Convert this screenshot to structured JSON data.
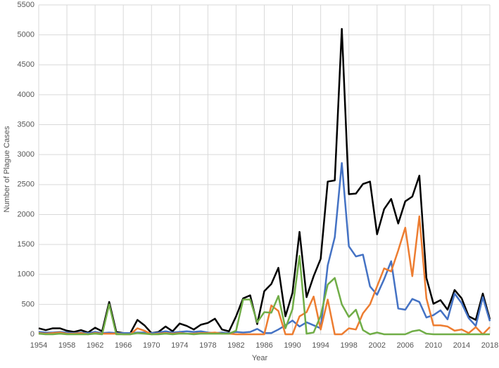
{
  "chart_data": {
    "type": "line",
    "x_label": "Year",
    "y_label": "Number of Plague Cases",
    "x": [
      1954,
      1955,
      1956,
      1957,
      1958,
      1959,
      1960,
      1961,
      1962,
      1963,
      1964,
      1965,
      1966,
      1967,
      1968,
      1969,
      1970,
      1971,
      1972,
      1973,
      1974,
      1975,
      1976,
      1977,
      1978,
      1979,
      1980,
      1981,
      1982,
      1983,
      1984,
      1985,
      1986,
      1987,
      1988,
      1989,
      1990,
      1991,
      1992,
      1993,
      1994,
      1995,
      1996,
      1997,
      1998,
      1999,
      2000,
      2001,
      2002,
      2003,
      2004,
      2005,
      2006,
      2007,
      2008,
      2009,
      2010,
      2011,
      2012,
      2013,
      2014,
      2015,
      2016,
      2017,
      2018
    ],
    "series": [
      {
        "color": "#000000",
        "values": [
          100,
          70,
          100,
          100,
          60,
          40,
          70,
          30,
          110,
          50,
          540,
          40,
          20,
          20,
          240,
          150,
          20,
          40,
          130,
          50,
          180,
          140,
          80,
          160,
          190,
          260,
          80,
          50,
          300,
          600,
          650,
          170,
          720,
          840,
          1110,
          300,
          690,
          1710,
          620,
          970,
          1260,
          2550,
          2570,
          5100,
          2340,
          2350,
          2510,
          2550,
          1670,
          2090,
          2260,
          1850,
          2220,
          2300,
          2650,
          940,
          510,
          570,
          410,
          740,
          600,
          300,
          240,
          680,
          250
        ]
      },
      {
        "color": "#4472c4",
        "values": [
          40,
          30,
          30,
          40,
          30,
          20,
          30,
          20,
          40,
          20,
          30,
          20,
          20,
          20,
          30,
          30,
          20,
          30,
          50,
          30,
          40,
          50,
          40,
          50,
          30,
          20,
          30,
          20,
          40,
          30,
          40,
          90,
          20,
          20,
          80,
          150,
          230,
          130,
          200,
          150,
          100,
          1150,
          1620,
          2860,
          1470,
          1300,
          1330,
          800,
          660,
          920,
          1220,
          430,
          410,
          590,
          540,
          280,
          320,
          400,
          250,
          680,
          520,
          270,
          140,
          620,
          220
        ]
      },
      {
        "color": "#ed7d31",
        "values": [
          20,
          10,
          20,
          30,
          10,
          10,
          20,
          0,
          20,
          10,
          10,
          10,
          0,
          0,
          100,
          60,
          0,
          10,
          20,
          10,
          20,
          10,
          10,
          20,
          20,
          30,
          10,
          10,
          0,
          0,
          0,
          0,
          0,
          480,
          390,
          0,
          0,
          300,
          370,
          630,
          80,
          580,
          0,
          0,
          100,
          80,
          350,
          500,
          800,
          1100,
          1050,
          1400,
          1780,
          970,
          1970,
          600,
          150,
          150,
          130,
          60,
          80,
          20,
          120,
          0,
          120
        ]
      },
      {
        "color": "#70ad47",
        "values": [
          10,
          0,
          0,
          10,
          0,
          0,
          0,
          0,
          10,
          0,
          500,
          0,
          0,
          0,
          20,
          10,
          0,
          0,
          10,
          0,
          10,
          10,
          0,
          10,
          10,
          10,
          10,
          10,
          60,
          580,
          580,
          200,
          370,
          360,
          640,
          100,
          420,
          1310,
          10,
          30,
          310,
          830,
          940,
          500,
          290,
          410,
          70,
          0,
          30,
          0,
          0,
          0,
          0,
          50,
          70,
          10,
          0,
          0,
          0,
          0,
          0,
          0,
          0,
          0,
          0
        ]
      }
    ],
    "xlim": [
      1954,
      2018
    ],
    "xticks": [
      1954,
      1958,
      1962,
      1966,
      1970,
      1974,
      1978,
      1982,
      1986,
      1990,
      1994,
      1998,
      2002,
      2006,
      2010,
      2014,
      2018
    ],
    "ylim": [
      0,
      5500
    ],
    "yticks": [
      0,
      500,
      1000,
      1500,
      2000,
      2500,
      3000,
      3500,
      4000,
      4500,
      5000,
      5500
    ],
    "grid": true
  }
}
